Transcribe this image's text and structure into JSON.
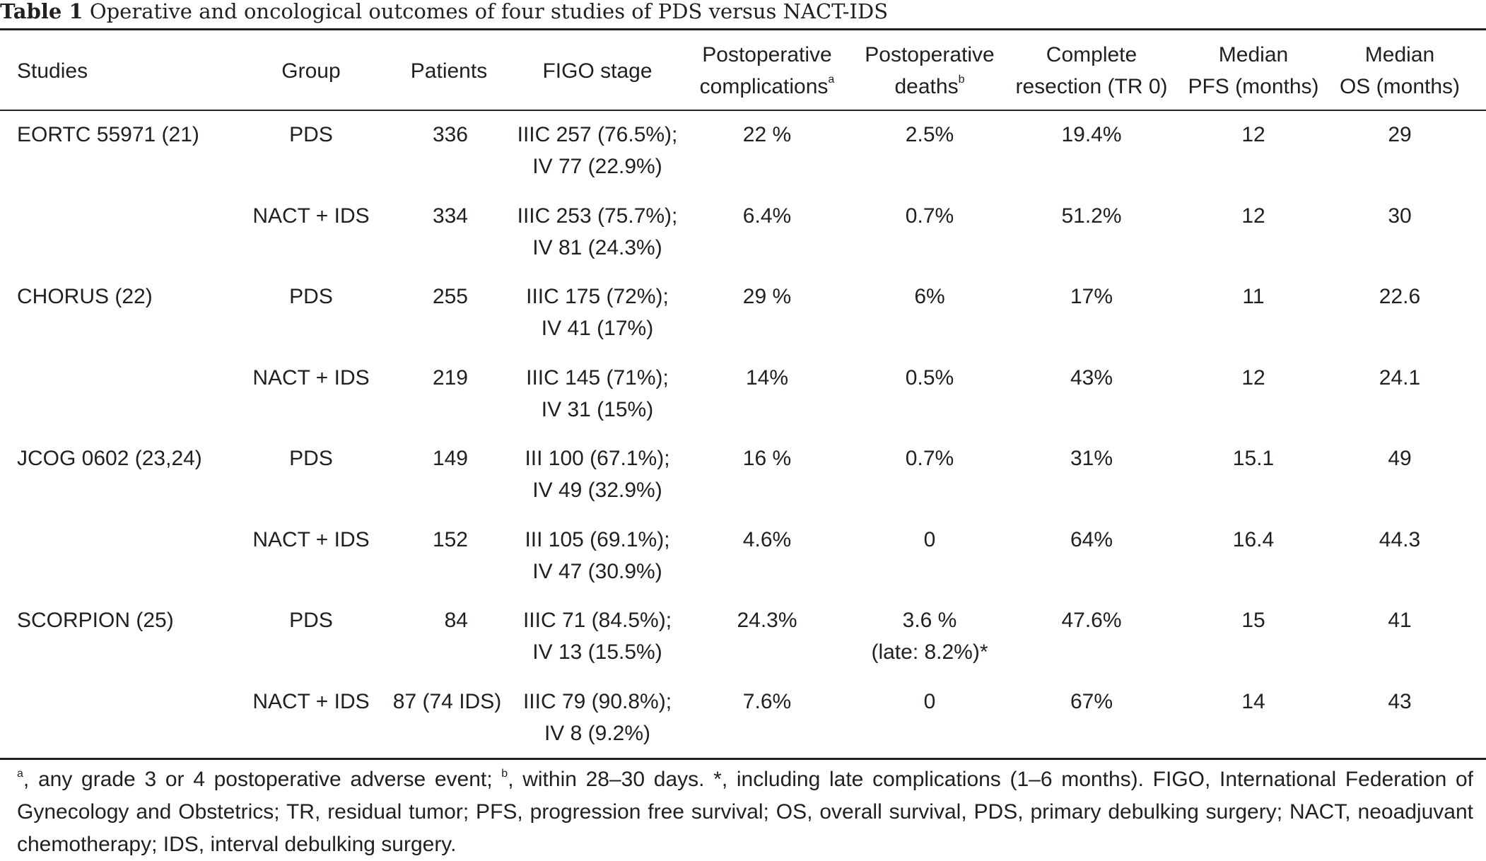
{
  "caption": {
    "label": "Table 1",
    "text": "Operative and oncological outcomes of four studies of PDS versus NACT-IDS"
  },
  "headers": {
    "studies": "Studies",
    "group": "Group",
    "patients": "Patients",
    "figo": "FIGO stage",
    "complications_l1": "Postoperative",
    "complications_l2": "complications",
    "complications_sup": "a",
    "deaths_l1": "Postoperative",
    "deaths_l2": "deaths",
    "deaths_sup": "b",
    "resection_l1": "Complete",
    "resection_l2": "resection (TR 0)",
    "pfs_l1": "Median",
    "pfs_l2": "PFS (months)",
    "os_l1": "Median",
    "os_l2": "OS (months)"
  },
  "rows": [
    {
      "study": "EORTC 55971 (21)",
      "group": "PDS",
      "patients": "336",
      "figo_l1": "IIIC 257 (76.5%);",
      "figo_l2": "IV 77 (22.9%)",
      "complications": "22 %",
      "deaths_l1": "2.5%",
      "deaths_l2": "",
      "resection": "19.4%",
      "pfs": "12",
      "os": "29"
    },
    {
      "study": "",
      "group": "NACT + IDS",
      "patients": "334",
      "figo_l1": "IIIC 253 (75.7%);",
      "figo_l2": "IV 81 (24.3%)",
      "complications": "6.4%",
      "deaths_l1": "0.7%",
      "deaths_l2": "",
      "resection": "51.2%",
      "pfs": "12",
      "os": "30"
    },
    {
      "study": "CHORUS (22)",
      "group": "PDS",
      "patients": "255",
      "figo_l1": "IIIC 175 (72%);",
      "figo_l2": "IV 41 (17%)",
      "complications": "29 %",
      "deaths_l1": "6%",
      "deaths_l2": "",
      "resection": "17%",
      "pfs": "11",
      "os": "22.6"
    },
    {
      "study": "",
      "group": "NACT + IDS",
      "patients": "219",
      "figo_l1": "IIIC 145 (71%);",
      "figo_l2": "IV 31 (15%)",
      "complications": "14%",
      "deaths_l1": "0.5%",
      "deaths_l2": "",
      "resection": "43%",
      "pfs": "12",
      "os": "24.1"
    },
    {
      "study": "JCOG 0602 (23,24)",
      "group": "PDS",
      "patients": "149",
      "figo_l1": "III 100 (67.1%);",
      "figo_l2": "IV 49 (32.9%)",
      "complications": "16 %",
      "deaths_l1": "0.7%",
      "deaths_l2": "",
      "resection": "31%",
      "pfs": "15.1",
      "os": "49"
    },
    {
      "study": "",
      "group": "NACT + IDS",
      "patients": "152",
      "figo_l1": "III 105 (69.1%);",
      "figo_l2": "IV 47 (30.9%)",
      "complications": "4.6%",
      "deaths_l1": "0",
      "deaths_l2": "",
      "resection": "64%",
      "pfs": "16.4",
      "os": "44.3"
    },
    {
      "study": "SCORPION (25)",
      "group": "PDS",
      "patients": "84",
      "figo_l1": "IIIC 71 (84.5%);",
      "figo_l2": "IV 13 (15.5%)",
      "complications": "24.3%",
      "deaths_l1": "3.6 %",
      "deaths_l2": "(late: 8.2%)*",
      "resection": "47.6%",
      "pfs": "15",
      "os": "41"
    },
    {
      "study": "",
      "group": "NACT + IDS",
      "patients": "87 (74 IDS)",
      "figo_l1": "IIIC 79 (90.8%);",
      "figo_l2": "IV 8 (9.2%)",
      "complications": "7.6%",
      "deaths_l1": "0",
      "deaths_l2": "",
      "resection": "67%",
      "pfs": "14",
      "os": "43"
    }
  ],
  "footnote": {
    "sup_a": "a",
    "text_a": ", any grade 3 or 4 postoperative adverse event; ",
    "sup_b": "b",
    "text_rest": ", within 28–30 days. *, including late complications (1–6 months). FIGO, International Federation of Gynecology and Obstetrics; TR, residual tumor; PFS, progression free survival; OS, overall survival, PDS, primary debulking surgery; NACT, neoadjuvant chemotherapy; IDS, interval debulking surgery."
  }
}
